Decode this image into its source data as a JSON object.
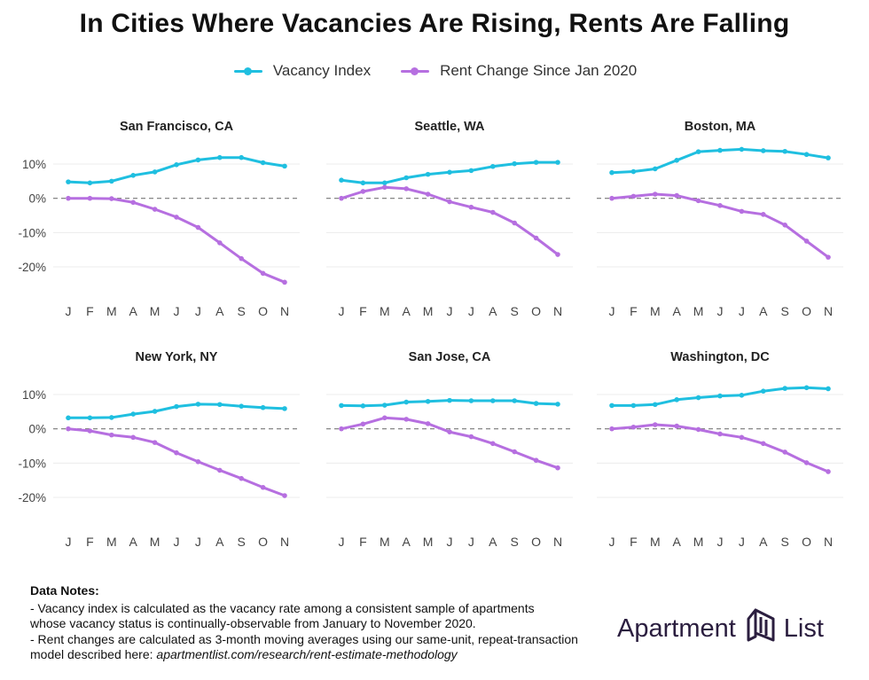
{
  "title": "In Cities Where Vacancies Are Rising, Rents Are Falling",
  "colors": {
    "vacancy": "#1fbfe0",
    "rent": "#b66fe0",
    "grid": "#ececec",
    "zero_line": "#777777",
    "brand": "#2b1e3f"
  },
  "legend": [
    {
      "label": "Vacancy Index",
      "color_key": "vacancy"
    },
    {
      "label": "Rent Change Since Jan 2020",
      "color_key": "rent"
    }
  ],
  "chart_data": [
    {
      "type": "line",
      "title": "San Francisco, CA",
      "categories": [
        "J",
        "F",
        "M",
        "A",
        "M",
        "J",
        "J",
        "A",
        "S",
        "O",
        "N"
      ],
      "y_ticks": [
        10,
        0,
        -10,
        -20
      ],
      "y_tick_labels": [
        "10%",
        "0%",
        "-10%",
        "-20%"
      ],
      "ylim": [
        -27,
        17
      ],
      "series": [
        {
          "name": "Vacancy Index",
          "values": [
            4.8,
            4.5,
            5.0,
            6.7,
            7.7,
            9.8,
            11.2,
            11.9,
            11.9,
            10.4,
            9.4
          ]
        },
        {
          "name": "Rent Change Since Jan 2020",
          "values": [
            0.0,
            0.0,
            -0.1,
            -1.2,
            -3.2,
            -5.5,
            -8.5,
            -13.0,
            -17.6,
            -21.9,
            -24.5
          ]
        }
      ]
    },
    {
      "type": "line",
      "title": "Seattle, WA",
      "categories": [
        "J",
        "F",
        "M",
        "A",
        "M",
        "J",
        "J",
        "A",
        "S",
        "O",
        "N"
      ],
      "y_ticks": [
        10,
        0,
        -10,
        -20
      ],
      "y_tick_labels": [
        "10%",
        "0%",
        "-10%",
        "-20%"
      ],
      "ylim": [
        -27,
        17
      ],
      "series": [
        {
          "name": "Vacancy Index",
          "values": [
            5.3,
            4.5,
            4.5,
            6.0,
            7.0,
            7.6,
            8.1,
            9.3,
            10.1,
            10.5,
            10.5
          ]
        },
        {
          "name": "Rent Change Since Jan 2020",
          "values": [
            0.0,
            2.0,
            3.2,
            2.8,
            1.2,
            -1.0,
            -2.6,
            -4.1,
            -7.2,
            -11.6,
            -16.4
          ]
        }
      ]
    },
    {
      "type": "line",
      "title": "Boston, MA",
      "categories": [
        "J",
        "F",
        "M",
        "A",
        "M",
        "J",
        "J",
        "A",
        "S",
        "O",
        "N"
      ],
      "y_ticks": [
        10,
        0,
        -10,
        -20
      ],
      "y_tick_labels": [
        "10%",
        "0%",
        "-10%",
        "-20%"
      ],
      "ylim": [
        -27,
        17
      ],
      "series": [
        {
          "name": "Vacancy Index",
          "values": [
            7.5,
            7.8,
            8.6,
            11.1,
            13.6,
            14.0,
            14.3,
            13.9,
            13.7,
            12.8,
            11.8
          ]
        },
        {
          "name": "Rent Change Since Jan 2020",
          "values": [
            0.0,
            0.6,
            1.2,
            0.8,
            -0.7,
            -2.1,
            -3.8,
            -4.7,
            -7.8,
            -12.5,
            -17.2
          ]
        }
      ]
    },
    {
      "type": "line",
      "title": "New York, NY",
      "categories": [
        "J",
        "F",
        "M",
        "A",
        "M",
        "J",
        "J",
        "A",
        "S",
        "O",
        "N"
      ],
      "y_ticks": [
        10,
        0,
        -10,
        -20
      ],
      "y_tick_labels": [
        "10%",
        "0%",
        "-10%",
        "-20%"
      ],
      "ylim": [
        -27,
        17
      ],
      "series": [
        {
          "name": "Vacancy Index",
          "values": [
            3.2,
            3.2,
            3.3,
            4.3,
            5.1,
            6.5,
            7.2,
            7.1,
            6.6,
            6.2,
            5.9
          ]
        },
        {
          "name": "Rent Change Since Jan 2020",
          "values": [
            0.0,
            -0.6,
            -1.8,
            -2.5,
            -4.0,
            -7.0,
            -9.6,
            -12.1,
            -14.5,
            -17.1,
            -19.5
          ]
        }
      ]
    },
    {
      "type": "line",
      "title": "San Jose, CA",
      "categories": [
        "J",
        "F",
        "M",
        "A",
        "M",
        "J",
        "J",
        "A",
        "S",
        "O",
        "N"
      ],
      "y_ticks": [
        10,
        0,
        -10,
        -20
      ],
      "y_tick_labels": [
        "10%",
        "0%",
        "-10%",
        "-20%"
      ],
      "ylim": [
        -27,
        17
      ],
      "series": [
        {
          "name": "Vacancy Index",
          "values": [
            6.8,
            6.7,
            6.9,
            7.8,
            8.0,
            8.3,
            8.2,
            8.2,
            8.2,
            7.4,
            7.2
          ]
        },
        {
          "name": "Rent Change Since Jan 2020",
          "values": [
            0.0,
            1.4,
            3.2,
            2.8,
            1.5,
            -0.9,
            -2.3,
            -4.3,
            -6.7,
            -9.2,
            -11.4
          ]
        }
      ]
    },
    {
      "type": "line",
      "title": "Washington, DC",
      "categories": [
        "J",
        "F",
        "M",
        "A",
        "M",
        "J",
        "J",
        "A",
        "S",
        "O",
        "N"
      ],
      "y_ticks": [
        10,
        0,
        -10,
        -20
      ],
      "y_tick_labels": [
        "10%",
        "0%",
        "-10%",
        "-20%"
      ],
      "ylim": [
        -27,
        17
      ],
      "series": [
        {
          "name": "Vacancy Index",
          "values": [
            6.8,
            6.8,
            7.1,
            8.5,
            9.1,
            9.6,
            9.8,
            11.0,
            11.8,
            12.0,
            11.7
          ]
        },
        {
          "name": "Rent Change Since Jan 2020",
          "values": [
            0.0,
            0.5,
            1.2,
            0.8,
            -0.2,
            -1.5,
            -2.5,
            -4.3,
            -6.8,
            -9.9,
            -12.5
          ]
        }
      ]
    }
  ],
  "notes": {
    "heading": "Data Notes:",
    "line1": "- Vacancy index is calculated as the vacancy rate among a consistent sample of apartments",
    "line2": "whose vacancy status is continually-observable from January to November 2020.",
    "line3": "- Rent changes are calculated as 3-month moving averages using our same-unit, repeat-transaction",
    "line4_prefix": "model described here: ",
    "line4_link": "apartmentlist.com/research/rent-estimate-methodology"
  },
  "brand": {
    "word1": "Apartment",
    "word2": "List",
    "logo_icon": "apartment-list-logo-icon"
  }
}
